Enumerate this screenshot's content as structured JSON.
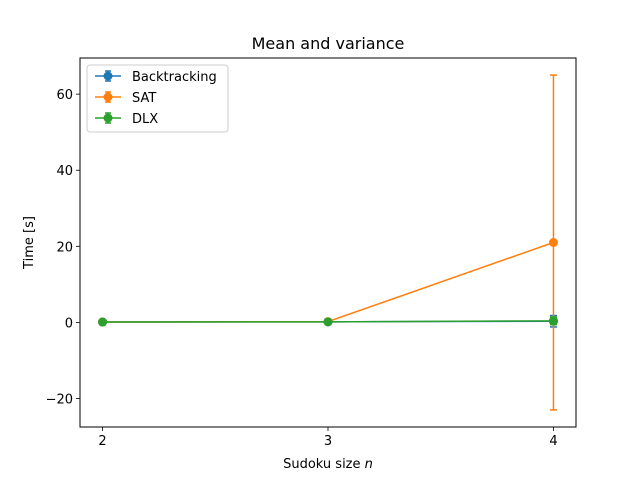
{
  "chart_data": {
    "type": "line",
    "title": "Mean and variance",
    "xlabel_text": "Sudoku size ",
    "xlabel_var": "n",
    "ylabel": "Time [s]",
    "x": [
      2,
      3,
      4
    ],
    "xlim": [
      1.9,
      4.1
    ],
    "ylim": [
      -27.5,
      69.5
    ],
    "xticks": [
      2,
      3,
      4
    ],
    "yticks": [
      -20,
      0,
      20,
      40,
      60
    ],
    "ytick_labels": [
      "−20",
      "0",
      "20",
      "40",
      "60"
    ],
    "grid": false,
    "legend_position": "upper-left",
    "series": [
      {
        "name": "Backtracking",
        "color": "#1f77b4",
        "values": [
          0.1,
          0.15,
          0.3
        ],
        "errors": [
          0.05,
          0.1,
          1.5
        ]
      },
      {
        "name": "SAT",
        "color": "#ff7f0e",
        "values": [
          0.1,
          0.2,
          21.0
        ],
        "errors": [
          0.05,
          0.1,
          44.0
        ]
      },
      {
        "name": "DLX",
        "color": "#2ca02c",
        "values": [
          0.1,
          0.15,
          0.4
        ],
        "errors": [
          0.05,
          0.1,
          1.0
        ]
      }
    ]
  }
}
